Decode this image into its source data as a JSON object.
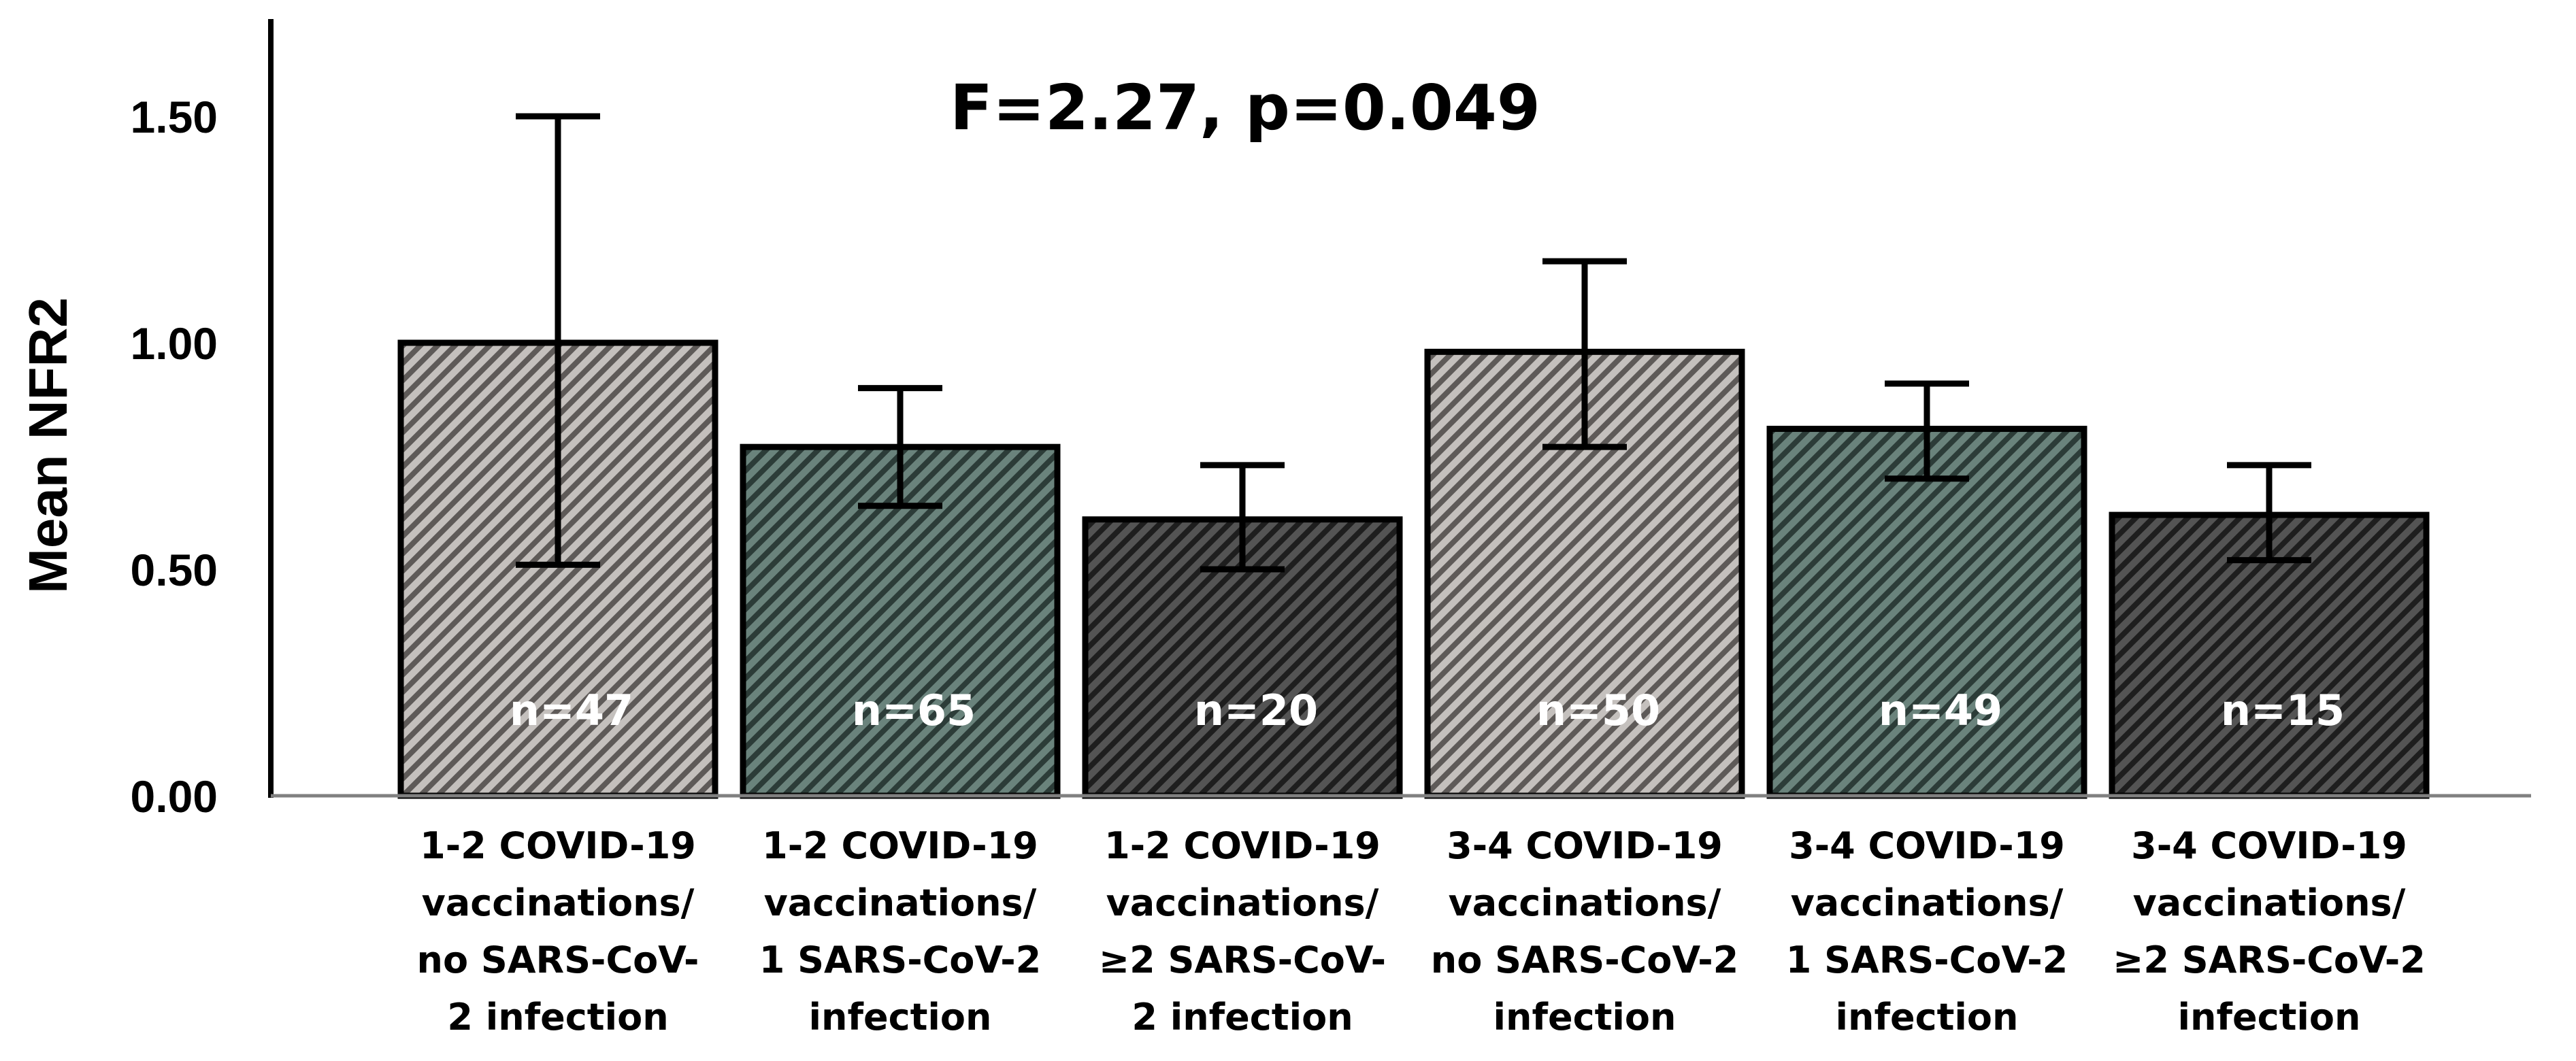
{
  "chart_data": {
    "type": "bar",
    "title": "",
    "annotation": "F=2.27, p=0.049",
    "xlabel": "",
    "ylabel": "Mean NFR2",
    "ylim": [
      0,
      1.65
    ],
    "yticks": [
      "0.00",
      "0.50",
      "1.00",
      "1.50"
    ],
    "ytick_values": [
      0,
      0.5,
      1.0,
      1.5
    ],
    "grid": false,
    "categories": [
      [
        "1-2 COVID-19",
        "vaccinations/",
        "no SARS-CoV-",
        "2 infection"
      ],
      [
        "1-2 COVID-19",
        "vaccinations/",
        "1 SARS-CoV-2",
        "infection"
      ],
      [
        "1-2 COVID-19",
        "vaccinations/",
        "≥2 SARS-CoV-",
        "2 infection"
      ],
      [
        "3-4 COVID-19",
        "vaccinations/",
        "no SARS-CoV-2",
        "infection"
      ],
      [
        "3-4 COVID-19",
        "vaccinations/",
        "1 SARS-CoV-2",
        "infection"
      ],
      [
        "3-4 COVID-19",
        "vaccinations/",
        "≥2 SARS-CoV-2",
        "infection"
      ]
    ],
    "values": [
      1.0,
      0.77,
      0.61,
      0.98,
      0.81,
      0.62
    ],
    "error_low": [
      0.51,
      0.64,
      0.5,
      0.77,
      0.7,
      0.52
    ],
    "error_high": [
      1.5,
      0.9,
      0.73,
      1.18,
      0.91,
      0.73
    ],
    "n_labels": [
      "n=47",
      "n=65",
      "n=20",
      "n=50",
      "n=49",
      "n=15"
    ],
    "colors": [
      "#a8a4a2",
      "#4e6660",
      "#3a3a3a",
      "#a8a4a2",
      "#4e6660",
      "#3a3a3a"
    ]
  }
}
